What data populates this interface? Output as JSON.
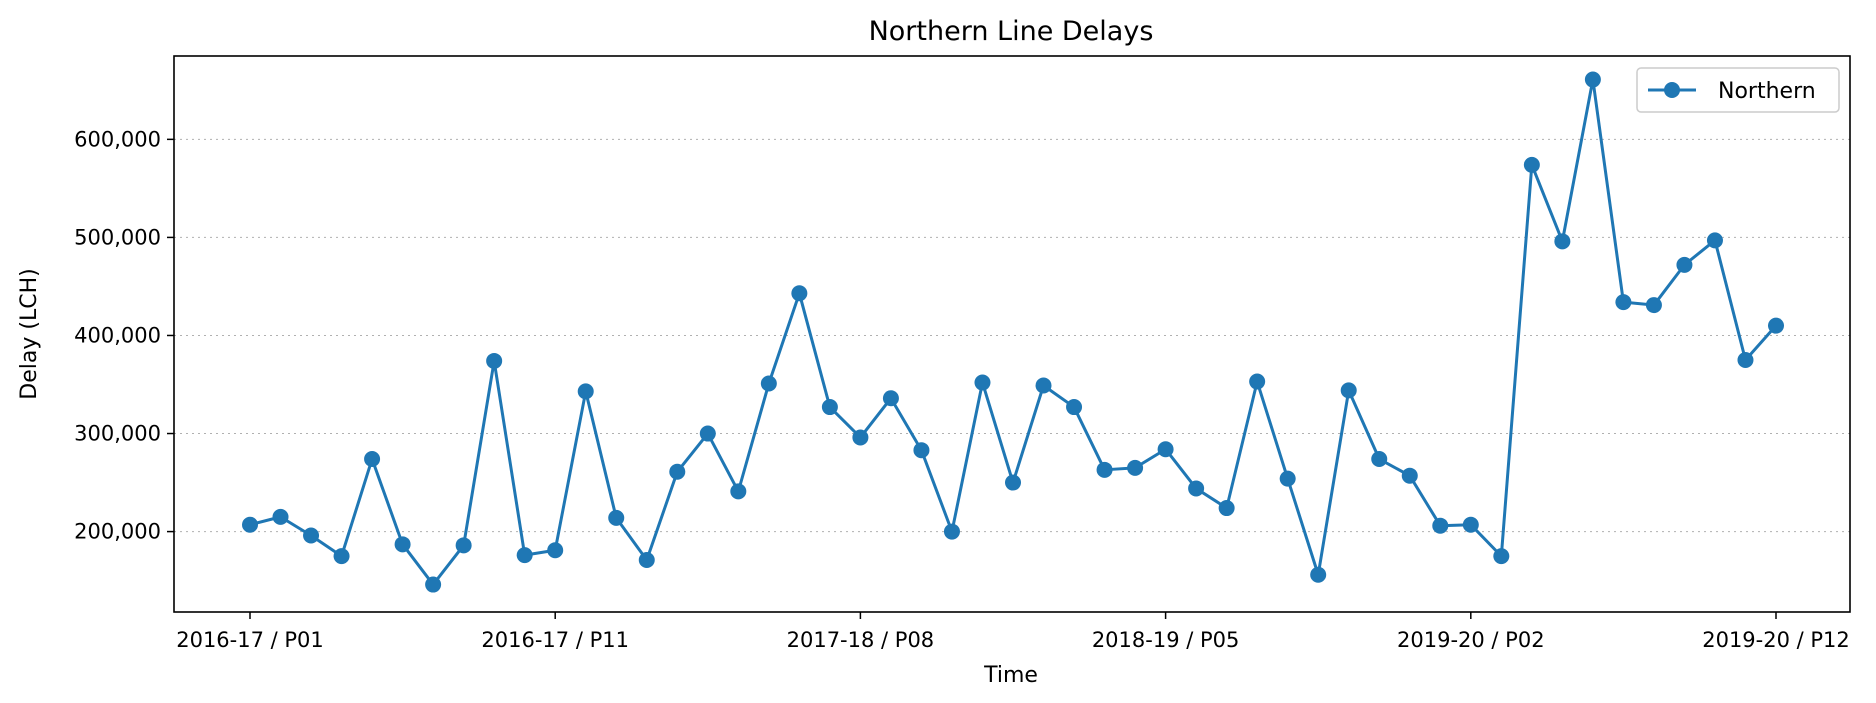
{
  "chart_data": {
    "type": "line",
    "title": "Northern Line Delays",
    "xlabel": "Time",
    "ylabel": "Delay (LCH)",
    "ylim": [
      118000,
      685000
    ],
    "yticks": [
      200000,
      300000,
      400000,
      500000,
      600000
    ],
    "ytick_labels": [
      "200,000",
      "300,000",
      "400,000",
      "500,000",
      "600,000"
    ],
    "xticks": [
      {
        "index": 0,
        "label": "2016-17 / P01"
      },
      {
        "index": 10,
        "label": "2016-17 / P11"
      },
      {
        "index": 20,
        "label": "2017-18 / P08"
      },
      {
        "index": 30,
        "label": "2018-19 / P05"
      },
      {
        "index": 40,
        "label": "2019-20 / P02"
      },
      {
        "index": 50,
        "label": "2019-20 / P12"
      }
    ],
    "grid": "y-dotted",
    "legend_position": "top-right",
    "series": [
      {
        "name": "Northern",
        "color": "#1f77b4",
        "values": [
          207000,
          215000,
          196000,
          175000,
          274000,
          187000,
          146000,
          186000,
          374000,
          176000,
          181000,
          343000,
          214000,
          171000,
          261000,
          300000,
          241000,
          351000,
          443000,
          327000,
          296000,
          336000,
          283000,
          200000,
          352000,
          250000,
          349000,
          327000,
          263000,
          265000,
          284000,
          244000,
          224000,
          353000,
          254000,
          156000,
          344000,
          274000,
          257000,
          206000,
          207000,
          175000,
          574000,
          496000,
          661000,
          434000,
          431000,
          472000,
          497000,
          375000,
          410000
        ]
      }
    ]
  }
}
